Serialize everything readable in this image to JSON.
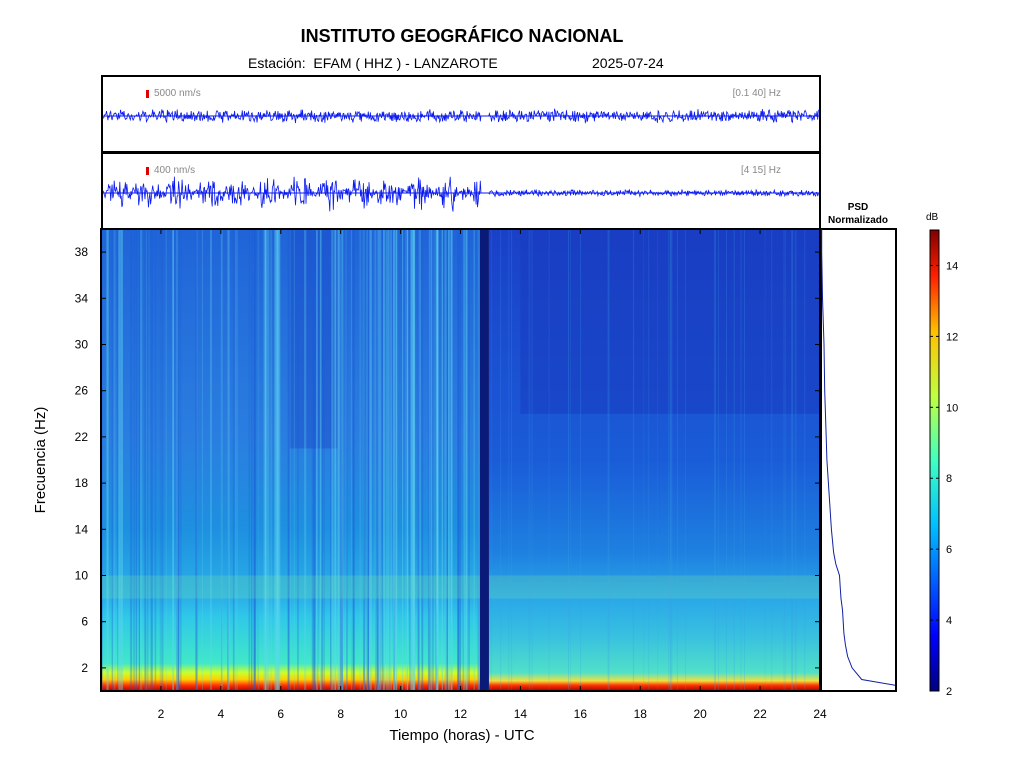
{
  "header": {
    "title": "INSTITUTO GEOGRÁFICO NACIONAL",
    "station": "Estación:  EFAM ( HHZ ) - LANZAROTE",
    "date": "2025-07-24"
  },
  "trace_top": {
    "scale": "5000 nm/s",
    "band": "[0.1 40] Hz"
  },
  "trace_bottom": {
    "scale": "400 nm/s",
    "band": "[4 15] Hz"
  },
  "psd": {
    "title_line1": "PSD",
    "title_line2": "Normalizado"
  },
  "colorbar": {
    "unit": "dB",
    "ticks": [
      2,
      4,
      6,
      8,
      10,
      12,
      14
    ]
  },
  "chart_data": {
    "type": "heatmap",
    "xlabel": "Tiempo (horas) - UTC",
    "ylabel": "Frecuencia  (Hz)",
    "xlim": [
      0,
      24
    ],
    "ylim": [
      0,
      40
    ],
    "xticks": [
      2,
      4,
      6,
      8,
      10,
      12,
      14,
      16,
      18,
      20,
      22,
      24
    ],
    "yticks": [
      2,
      6,
      10,
      14,
      18,
      22,
      26,
      30,
      34,
      38
    ],
    "color_range_db": [
      2,
      15
    ],
    "data_gap_hours": [
      12.65,
      12.95
    ],
    "psd_profile": {
      "frequency_hz": [
        0.5,
        1,
        2,
        3,
        4,
        5,
        6,
        7,
        8,
        9,
        10,
        11,
        12,
        14,
        16,
        18,
        20,
        22,
        26,
        30,
        34,
        38,
        40
      ],
      "normalized": [
        1.0,
        0.55,
        0.42,
        0.36,
        0.33,
        0.31,
        0.3,
        0.29,
        0.27,
        0.26,
        0.25,
        0.2,
        0.17,
        0.14,
        0.12,
        0.1,
        0.08,
        0.07,
        0.05,
        0.04,
        0.02,
        0.01,
        0.01
      ]
    }
  }
}
